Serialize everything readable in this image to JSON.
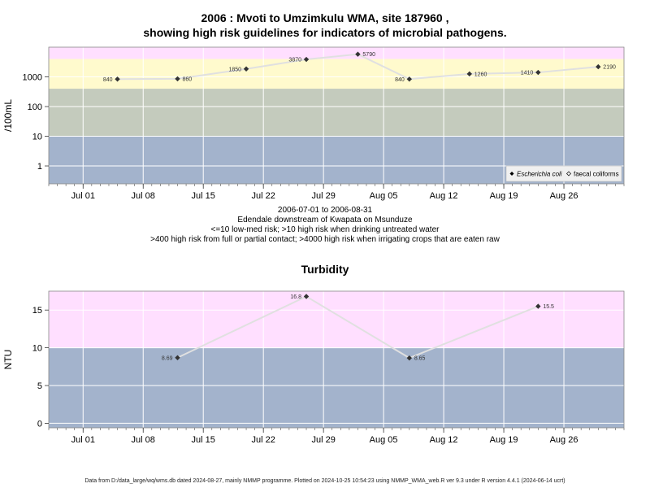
{
  "titles": {
    "main_line1": "2006 : Mvoti to Umzimkulu WMA, site 187960 ,",
    "main_line2": "showing high risk guidelines for indicators of microbial pathogens.",
    "turbidity": "Turbidity"
  },
  "captions": {
    "line1": "2006-07-01 to 2006-08-31",
    "line2": "Edendale downstream of Kwapata on Msunduze",
    "line3": "<=10 low-med risk; >10 high risk when drinking untreated water",
    "line4": ">400 high risk from full or partial contact; >4000 high risk when irrigating crops that are eaten raw"
  },
  "footer": "Data from D:/data_large/wq/wms.db dated 2024-08-27, mainly NMMP programme. Plotted on 2024-10-25 10:54:23 using NMMP_WMA_web.R ver 9.3 under R version 4.4.1 (2024-06-14 ucrt)",
  "colors": {
    "band_low": "#a3b3cc",
    "band_mid": "#c4cbbd",
    "band_high": "#fffacd",
    "band_veryhigh": "#ffdfff",
    "line": "#e0e0e0",
    "grid": "#ffffff",
    "point": "#333333"
  },
  "chart_data": [
    {
      "type": "line",
      "title": "",
      "ylabel": "/100mL",
      "y_scale": "log",
      "xlim": [
        "2006-06-27",
        "2006-09-02"
      ],
      "ylim": [
        0.25,
        10000
      ],
      "x_ticks": [
        "Jul 01",
        "Jul 08",
        "Jul 15",
        "Jul 22",
        "Jul 29",
        "Aug 05",
        "Aug 12",
        "Aug 19",
        "Aug 26"
      ],
      "x_tick_dates": [
        "2006-07-01",
        "2006-07-08",
        "2006-07-15",
        "2006-07-22",
        "2006-07-29",
        "2006-08-05",
        "2006-08-12",
        "2006-08-19",
        "2006-08-26"
      ],
      "y_ticks": [
        "1",
        "10",
        "100",
        "1000"
      ],
      "y_tick_values": [
        1,
        10,
        100,
        1000
      ],
      "bands": [
        {
          "from": 0.25,
          "to": 10,
          "color": "band_low"
        },
        {
          "from": 10,
          "to": 400,
          "color": "band_mid"
        },
        {
          "from": 400,
          "to": 4000,
          "color": "band_high"
        },
        {
          "from": 4000,
          "to": 10000,
          "color": "band_veryhigh"
        }
      ],
      "legend": {
        "position": "bottom-right",
        "entries": [
          "Escherichia coli",
          "faecal coliforms"
        ]
      },
      "series": [
        {
          "name": "Escherichia coli",
          "points": [
            {
              "x": "2006-07-05",
              "y": 840,
              "label": "840",
              "side": "left"
            },
            {
              "x": "2006-07-12",
              "y": 860,
              "label": "860",
              "side": "right"
            },
            {
              "x": "2006-07-20",
              "y": 1850,
              "label": "1850",
              "side": "left"
            },
            {
              "x": "2006-07-27",
              "y": 3870,
              "label": "3870",
              "side": "left"
            },
            {
              "x": "2006-08-02",
              "y": 5790,
              "label": "5790",
              "side": "right"
            },
            {
              "x": "2006-08-08",
              "y": 840,
              "label": "840",
              "side": "left"
            },
            {
              "x": "2006-08-15",
              "y": 1260,
              "label": "1260",
              "side": "right"
            },
            {
              "x": "2006-08-23",
              "y": 1410,
              "label": "1410",
              "side": "left"
            },
            {
              "x": "2006-08-30",
              "y": 2190,
              "label": "2190",
              "side": "right"
            }
          ]
        }
      ]
    },
    {
      "type": "line",
      "title": "Turbidity",
      "ylabel": "NTU",
      "xlim": [
        "2006-06-27",
        "2006-09-02"
      ],
      "ylim": [
        -0.6,
        17.5
      ],
      "x_ticks": [
        "Jul 01",
        "Jul 08",
        "Jul 15",
        "Jul 22",
        "Jul 29",
        "Aug 05",
        "Aug 12",
        "Aug 19",
        "Aug 26"
      ],
      "x_tick_dates": [
        "2006-07-01",
        "2006-07-08",
        "2006-07-15",
        "2006-07-22",
        "2006-07-29",
        "2006-08-05",
        "2006-08-12",
        "2006-08-19",
        "2006-08-26"
      ],
      "y_ticks": [
        "0",
        "5",
        "10",
        "15"
      ],
      "y_tick_values": [
        0,
        5,
        10,
        15
      ],
      "bands": [
        {
          "from": -0.6,
          "to": 10,
          "color": "band_low"
        },
        {
          "from": 10,
          "to": 17.5,
          "color": "band_veryhigh"
        }
      ],
      "series": [
        {
          "name": "",
          "points": [
            {
              "x": "2006-07-12",
              "y": 8.69,
              "label": "8.69",
              "side": "left"
            },
            {
              "x": "2006-07-27",
              "y": 16.8,
              "label": "16.8",
              "side": "left"
            },
            {
              "x": "2006-08-08",
              "y": 8.65,
              "label": "8.65",
              "side": "right"
            },
            {
              "x": "2006-08-23",
              "y": 15.5,
              "label": "15.5",
              "side": "right"
            }
          ]
        }
      ]
    }
  ]
}
